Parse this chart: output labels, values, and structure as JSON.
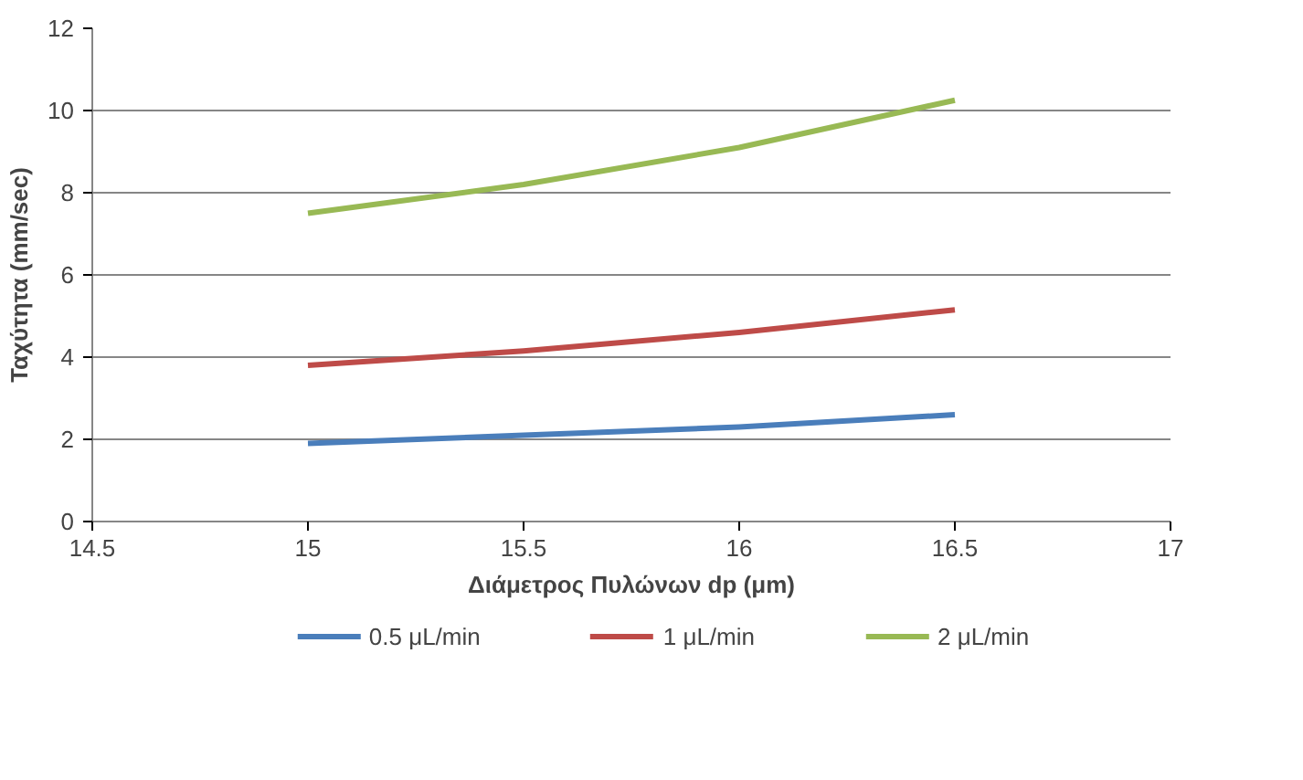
{
  "chart_data": {
    "type": "line",
    "xlabel": "Διάμετρος Πυλώνων dp (μm)",
    "ylabel": "Ταχύτητα (mm/sec)",
    "x": [
      15,
      15.5,
      16,
      16.5
    ],
    "series": [
      {
        "name": "0.5 μL/min",
        "color": "#4a7ebb",
        "values": [
          1.9,
          2.1,
          2.3,
          2.6
        ]
      },
      {
        "name": "1 μL/min",
        "color": "#be4b48",
        "values": [
          3.8,
          4.15,
          4.6,
          5.15
        ]
      },
      {
        "name": "2 μL/min",
        "color": "#98b954",
        "values": [
          7.5,
          8.2,
          9.1,
          10.25
        ]
      }
    ],
    "xlim": [
      14.5,
      17
    ],
    "xticks": [
      14.5,
      15,
      15.5,
      16,
      16.5,
      17
    ],
    "ylim": [
      0,
      12
    ],
    "yticks": [
      0,
      2,
      4,
      6,
      8,
      10,
      12
    ],
    "grid": "y",
    "legend": "bottom",
    "marker": "none",
    "line_style": "solid"
  }
}
